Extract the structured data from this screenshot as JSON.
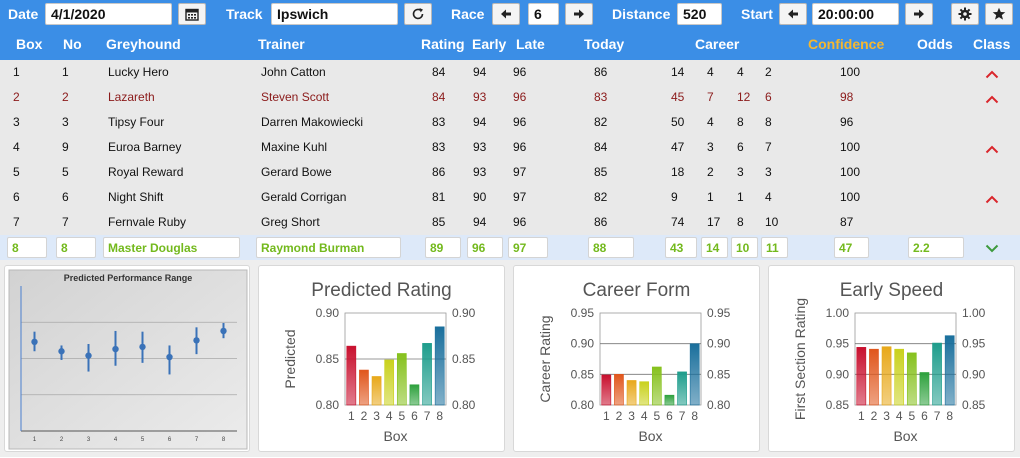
{
  "toolbar": {
    "date_label": "Date",
    "date_value": "4/1/2020",
    "track_label": "Track",
    "track_value": "Ipswich",
    "race_label": "Race",
    "race_value": "6",
    "distance_label": "Distance",
    "distance_value": "520",
    "start_label": "Start",
    "start_value": "20:00:00"
  },
  "columns": {
    "box": "Box",
    "no": "No",
    "greyhound": "Greyhound",
    "trainer": "Trainer",
    "rating": "Rating",
    "early": "Early",
    "late": "Late",
    "today": "Today",
    "career": "Career",
    "confidence": "Confidence",
    "odds": "Odds",
    "class": "Class"
  },
  "rows": [
    {
      "box": "1",
      "no": "1",
      "greyhound": "Lucky Hero",
      "trainer": "John Catton",
      "rating": "84",
      "early": "94",
      "late": "96",
      "today": "86",
      "c1": "14",
      "c2": "4",
      "c3": "4",
      "c4": "2",
      "confidence": "100",
      "odds": "",
      "class_arrow": "up"
    },
    {
      "box": "2",
      "no": "2",
      "greyhound": "Lazareth",
      "trainer": "Steven Scott",
      "rating": "84",
      "early": "93",
      "late": "96",
      "today": "83",
      "c1": "45",
      "c2": "7",
      "c3": "12",
      "c4": "6",
      "confidence": "98",
      "odds": "",
      "class_arrow": "up",
      "highlight": "red"
    },
    {
      "box": "3",
      "no": "3",
      "greyhound": "Tipsy Four",
      "trainer": "Darren Makowiecki",
      "rating": "83",
      "early": "94",
      "late": "96",
      "today": "82",
      "c1": "50",
      "c2": "4",
      "c3": "8",
      "c4": "8",
      "confidence": "96",
      "odds": "",
      "class_arrow": ""
    },
    {
      "box": "4",
      "no": "9",
      "greyhound": "Euroa Barney",
      "trainer": "Maxine Kuhl",
      "rating": "83",
      "early": "93",
      "late": "96",
      "today": "84",
      "c1": "47",
      "c2": "3",
      "c3": "6",
      "c4": "7",
      "confidence": "100",
      "odds": "",
      "class_arrow": "up"
    },
    {
      "box": "5",
      "no": "5",
      "greyhound": "Royal Reward",
      "trainer": "Gerard Bowe",
      "rating": "86",
      "early": "93",
      "late": "97",
      "today": "85",
      "c1": "18",
      "c2": "2",
      "c3": "3",
      "c4": "3",
      "confidence": "100",
      "odds": "",
      "class_arrow": ""
    },
    {
      "box": "6",
      "no": "6",
      "greyhound": "Night Shift",
      "trainer": "Gerald Corrigan",
      "rating": "81",
      "early": "90",
      "late": "97",
      "today": "82",
      "c1": "9",
      "c2": "1",
      "c3": "1",
      "c4": "4",
      "confidence": "100",
      "odds": "",
      "class_arrow": "up"
    },
    {
      "box": "7",
      "no": "7",
      "greyhound": "Fernvale Ruby",
      "trainer": "Greg Short",
      "rating": "85",
      "early": "94",
      "late": "96",
      "today": "86",
      "c1": "74",
      "c2": "17",
      "c3": "8",
      "c4": "10",
      "confidence": "87",
      "odds": "",
      "class_arrow": ""
    },
    {
      "box": "8",
      "no": "8",
      "greyhound": "Master Douglas",
      "trainer": "Raymond Burman",
      "rating": "89",
      "early": "96",
      "late": "97",
      "today": "88",
      "c1": "43",
      "c2": "14",
      "c3": "10",
      "c4": "11",
      "confidence": "47",
      "odds": "2.2",
      "class_arrow": "down",
      "highlight": "selected"
    }
  ],
  "colors": {
    "header_bg": "#3b8ee6",
    "confidence_header": "#f5b730",
    "red_row": "#8b1a1a",
    "selected_text": "#73b91d",
    "up_arrow": "#d9262c",
    "down_arrow": "#3d9a3d"
  },
  "chart_data": [
    {
      "type": "scatter",
      "title": "Predicted Performance Range",
      "x": [
        1,
        2,
        3,
        4,
        5,
        6,
        7,
        8
      ],
      "y": [
        0.615,
        0.55,
        0.52,
        0.565,
        0.58,
        0.51,
        0.625,
        0.69
      ],
      "error_low": [
        0.55,
        0.49,
        0.41,
        0.45,
        0.47,
        0.39,
        0.53,
        0.64
      ],
      "error_high": [
        0.685,
        0.59,
        0.6,
        0.69,
        0.685,
        0.59,
        0.715,
        0.745
      ],
      "xticks": [
        "1",
        "2",
        "3",
        "4",
        "5",
        "6",
        "7",
        "8"
      ],
      "ylim": [
        0,
        1
      ]
    },
    {
      "type": "bar",
      "title": "Predicted Rating",
      "ylabel": "Predicted",
      "xlabel": "Box",
      "categories": [
        "1",
        "2",
        "3",
        "4",
        "5",
        "6",
        "7",
        "8"
      ],
      "values": [
        0.864,
        0.838,
        0.831,
        0.849,
        0.856,
        0.822,
        0.867,
        0.885
      ],
      "ylim": [
        0.8,
        0.9
      ],
      "yticks": [
        "0.80",
        "0.85",
        "0.90"
      ],
      "colors": [
        "#c8102e",
        "#e0561c",
        "#e8a81a",
        "#c9d11c",
        "#86c11d",
        "#2ea13d",
        "#1e9d8c",
        "#1a6f9c"
      ]
    },
    {
      "type": "bar",
      "title": "Career Form",
      "ylabel": "Career Rating",
      "xlabel": "Box",
      "categories": [
        "1",
        "2",
        "3",
        "4",
        "5",
        "6",
        "7",
        "8"
      ],
      "values": [
        0.849,
        0.85,
        0.84,
        0.838,
        0.862,
        0.816,
        0.854,
        0.9
      ],
      "ylim": [
        0.8,
        0.95
      ],
      "yticks": [
        "0.80",
        "0.85",
        "0.90",
        "0.95"
      ],
      "colors": [
        "#c8102e",
        "#e0561c",
        "#e8a81a",
        "#c9d11c",
        "#86c11d",
        "#2ea13d",
        "#1e9d8c",
        "#1a6f9c"
      ]
    },
    {
      "type": "bar",
      "title": "Early Speed",
      "ylabel": "First Section Rating",
      "xlabel": "Box",
      "categories": [
        "1",
        "2",
        "3",
        "4",
        "5",
        "6",
        "7",
        "8"
      ],
      "values": [
        0.944,
        0.941,
        0.945,
        0.941,
        0.935,
        0.903,
        0.951,
        0.963
      ],
      "ylim": [
        0.85,
        1.0
      ],
      "yticks": [
        "0.85",
        "0.90",
        "0.95",
        "1.00"
      ],
      "colors": [
        "#c8102e",
        "#e0561c",
        "#e8a81a",
        "#c9d11c",
        "#86c11d",
        "#2ea13d",
        "#1e9d8c",
        "#1a6f9c"
      ]
    }
  ]
}
